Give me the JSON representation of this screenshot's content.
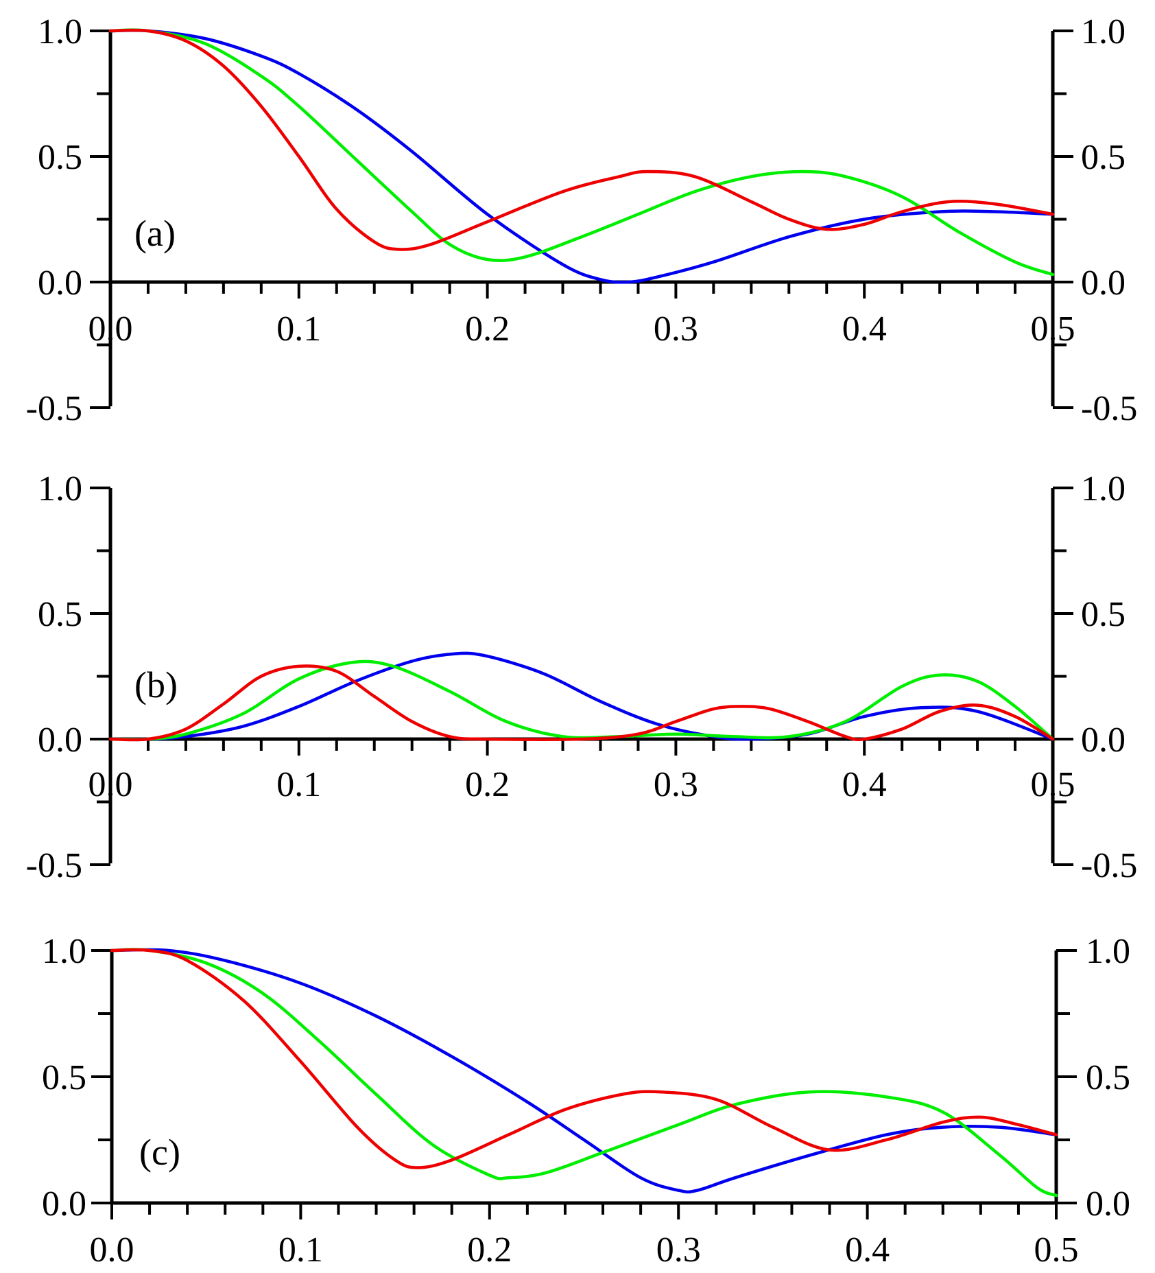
{
  "colors": {
    "blue": "#0000ee",
    "green": "#00ee00",
    "red": "#ee0000",
    "axis": "#000000"
  },
  "chart_data": [
    {
      "type": "line",
      "panel_label": "(a)",
      "xlim": [
        0,
        0.5
      ],
      "ylim": [
        -0.5,
        1.0
      ],
      "x_tick_labels": [
        "0.0",
        "0.1",
        "0.2",
        "0.3",
        "0.4",
        "0.5"
      ],
      "y_left_tick_labels": [
        "1.0",
        "0.5",
        "0.0",
        "-0.5"
      ],
      "y_right_tick_labels": [
        "1.0",
        "0.5",
        "0.0",
        "-0.5"
      ],
      "series": [
        {
          "name": "blue",
          "color": "#0000ee",
          "x": [
            0,
            0.02,
            0.05,
            0.08,
            0.1,
            0.13,
            0.16,
            0.2,
            0.24,
            0.26,
            0.275,
            0.29,
            0.32,
            0.36,
            0.4,
            0.44,
            0.47,
            0.5
          ],
          "y": [
            1.0,
            1.0,
            0.97,
            0.9,
            0.83,
            0.69,
            0.52,
            0.27,
            0.07,
            0.01,
            0.0,
            0.02,
            0.08,
            0.18,
            0.25,
            0.28,
            0.28,
            0.27
          ]
        },
        {
          "name": "green",
          "color": "#00ee00",
          "x": [
            0,
            0.02,
            0.05,
            0.08,
            0.1,
            0.13,
            0.16,
            0.18,
            0.2,
            0.22,
            0.25,
            0.28,
            0.31,
            0.34,
            0.367,
            0.39,
            0.42,
            0.45,
            0.48,
            0.5
          ],
          "y": [
            1.0,
            1.0,
            0.95,
            0.82,
            0.7,
            0.49,
            0.28,
            0.15,
            0.09,
            0.1,
            0.18,
            0.27,
            0.36,
            0.42,
            0.44,
            0.42,
            0.34,
            0.2,
            0.08,
            0.03
          ]
        },
        {
          "name": "red",
          "color": "#ee0000",
          "x": [
            0,
            0.02,
            0.04,
            0.06,
            0.08,
            0.1,
            0.12,
            0.14,
            0.153,
            0.17,
            0.2,
            0.24,
            0.27,
            0.285,
            0.31,
            0.34,
            0.36,
            0.38,
            0.4,
            0.42,
            0.445,
            0.47,
            0.5
          ],
          "y": [
            1.0,
            1.0,
            0.96,
            0.86,
            0.7,
            0.5,
            0.29,
            0.16,
            0.13,
            0.15,
            0.24,
            0.36,
            0.42,
            0.44,
            0.42,
            0.32,
            0.25,
            0.21,
            0.23,
            0.28,
            0.32,
            0.31,
            0.27
          ]
        }
      ]
    },
    {
      "type": "line",
      "panel_label": "(b)",
      "xlim": [
        0,
        0.5
      ],
      "ylim": [
        -0.5,
        1.0
      ],
      "x_tick_labels": [
        "0.0",
        "0.1",
        "0.2",
        "0.3",
        "0.4",
        "0.5"
      ],
      "y_left_tick_labels": [
        "1.0",
        "0.5",
        "0.0",
        "-0.5"
      ],
      "y_right_tick_labels": [
        "1.0",
        "0.5",
        "0.0",
        "-0.5"
      ],
      "series": [
        {
          "name": "blue",
          "color": "#0000ee",
          "x": [
            0,
            0.02,
            0.04,
            0.07,
            0.1,
            0.13,
            0.16,
            0.183,
            0.2,
            0.23,
            0.26,
            0.29,
            0.32,
            0.34,
            0.37,
            0.4,
            0.43,
            0.46,
            0.5
          ],
          "y": [
            0,
            0,
            0.01,
            0.05,
            0.13,
            0.23,
            0.31,
            0.34,
            0.33,
            0.26,
            0.15,
            0.06,
            0.01,
            0.0,
            0.02,
            0.09,
            0.125,
            0.11,
            0.0
          ]
        },
        {
          "name": "green",
          "color": "#00ee00",
          "x": [
            0,
            0.02,
            0.04,
            0.07,
            0.1,
            0.128,
            0.15,
            0.18,
            0.21,
            0.24,
            0.27,
            0.3,
            0.33,
            0.36,
            0.39,
            0.42,
            0.44,
            0.46,
            0.48,
            0.5
          ],
          "y": [
            0,
            0,
            0.02,
            0.1,
            0.24,
            0.305,
            0.29,
            0.19,
            0.07,
            0.01,
            0.01,
            0.02,
            0.01,
            0.01,
            0.07,
            0.21,
            0.255,
            0.23,
            0.13,
            0.0
          ]
        },
        {
          "name": "red",
          "color": "#ee0000",
          "x": [
            0,
            0.02,
            0.04,
            0.06,
            0.08,
            0.1,
            0.12,
            0.14,
            0.16,
            0.18,
            0.2,
            0.25,
            0.28,
            0.3,
            0.32,
            0.335,
            0.35,
            0.37,
            0.39,
            0.4,
            0.42,
            0.44,
            0.46,
            0.48,
            0.5
          ],
          "y": [
            0,
            0,
            0.04,
            0.14,
            0.25,
            0.29,
            0.27,
            0.17,
            0.07,
            0.01,
            0.0,
            0.0,
            0.02,
            0.07,
            0.12,
            0.13,
            0.12,
            0.07,
            0.01,
            0.0,
            0.04,
            0.11,
            0.135,
            0.09,
            0.0
          ]
        }
      ]
    },
    {
      "type": "line",
      "panel_label": "(c)",
      "xlim": [
        0,
        0.5
      ],
      "ylim": [
        0.0,
        1.0
      ],
      "x_tick_labels": [
        "0.0",
        "0.1",
        "0.2",
        "0.3",
        "0.4",
        "0.5"
      ],
      "y_left_tick_labels": [
        "1.0",
        "0.5",
        "0.0"
      ],
      "y_right_tick_labels": [
        "1.0",
        "0.5",
        "0.0"
      ],
      "series": [
        {
          "name": "blue",
          "color": "#0000ee",
          "x": [
            0,
            0.03,
            0.06,
            0.1,
            0.14,
            0.18,
            0.22,
            0.25,
            0.28,
            0.3,
            0.31,
            0.33,
            0.37,
            0.41,
            0.44,
            0.47,
            0.5
          ],
          "y": [
            1.0,
            1.0,
            0.96,
            0.87,
            0.74,
            0.58,
            0.4,
            0.25,
            0.1,
            0.05,
            0.05,
            0.1,
            0.19,
            0.27,
            0.3,
            0.3,
            0.27
          ]
        },
        {
          "name": "green",
          "color": "#00ee00",
          "x": [
            0,
            0.02,
            0.05,
            0.08,
            0.11,
            0.14,
            0.17,
            0.2,
            0.21,
            0.23,
            0.26,
            0.3,
            0.33,
            0.37,
            0.41,
            0.44,
            0.47,
            0.49,
            0.5
          ],
          "y": [
            1.0,
            1.0,
            0.95,
            0.83,
            0.64,
            0.43,
            0.23,
            0.11,
            0.1,
            0.12,
            0.2,
            0.31,
            0.39,
            0.44,
            0.42,
            0.36,
            0.19,
            0.06,
            0.03
          ]
        },
        {
          "name": "red",
          "color": "#ee0000",
          "x": [
            0,
            0.02,
            0.04,
            0.07,
            0.1,
            0.13,
            0.15,
            0.162,
            0.18,
            0.21,
            0.24,
            0.27,
            0.29,
            0.32,
            0.35,
            0.38,
            0.41,
            0.44,
            0.46,
            0.48,
            0.5
          ],
          "y": [
            1.0,
            1.0,
            0.96,
            0.8,
            0.56,
            0.3,
            0.17,
            0.14,
            0.17,
            0.27,
            0.37,
            0.43,
            0.44,
            0.41,
            0.3,
            0.21,
            0.25,
            0.32,
            0.34,
            0.31,
            0.27
          ]
        }
      ]
    }
  ]
}
